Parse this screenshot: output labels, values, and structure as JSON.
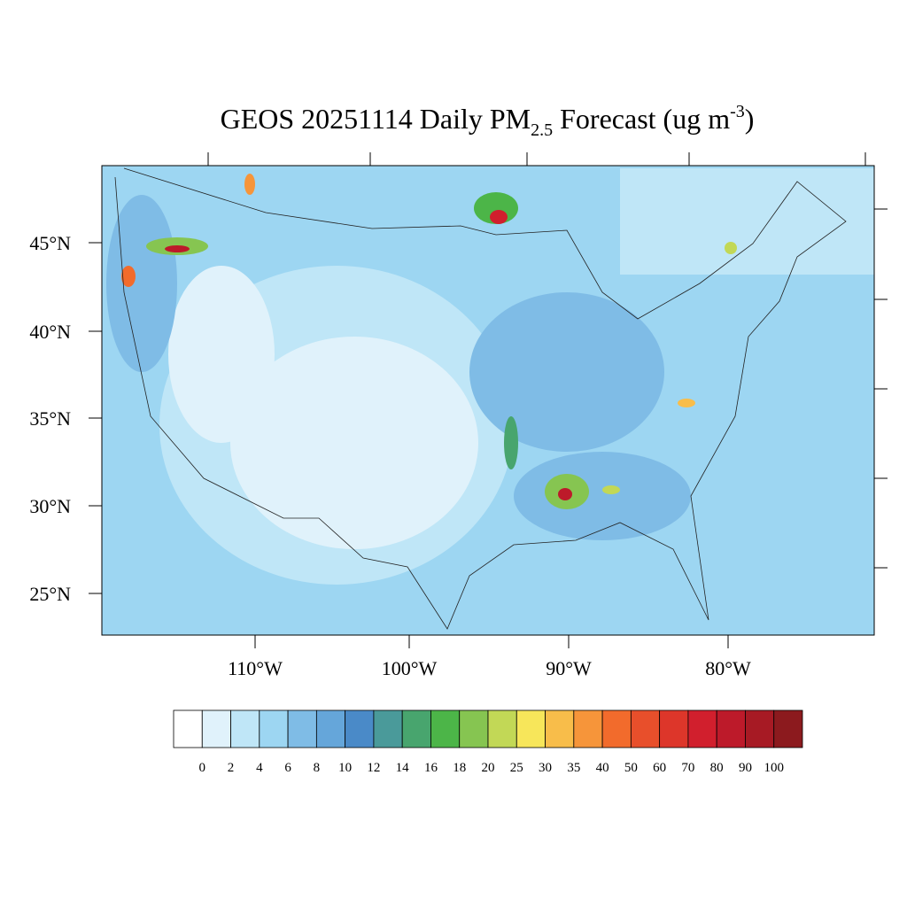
{
  "title": {
    "main": "GEOS 20251114 Daily PM",
    "subscript": "2.5",
    "middle": " Forecast (ug m",
    "superscript": "-3",
    "end": ")"
  },
  "latitude_labels": [
    "45°N",
    "40°N",
    "35°N",
    "30°N",
    "25°N"
  ],
  "longitude_labels": [
    "110°W",
    "100°W",
    "90°W",
    "80°W"
  ],
  "colorbar": {
    "labels": [
      "0",
      "2",
      "4",
      "6",
      "8",
      "10",
      "12",
      "14",
      "16",
      "18",
      "20",
      "25",
      "30",
      "35",
      "40",
      "50",
      "60",
      "70",
      "80",
      "90",
      "100"
    ],
    "colors": [
      "#ffffff",
      "#e0f2fb",
      "#bfe6f7",
      "#9dd6f2",
      "#7fbce6",
      "#65a6da",
      "#4a8ac8",
      "#4a9a9a",
      "#48a56e",
      "#4cb548",
      "#86c551",
      "#c2d856",
      "#f7e65a",
      "#f8bd4a",
      "#f6953a",
      "#f26b2c",
      "#e84f2b",
      "#dd362a",
      "#d11f2d",
      "#bd1a2a",
      "#a71a24",
      "#8c1a1e"
    ]
  }
}
